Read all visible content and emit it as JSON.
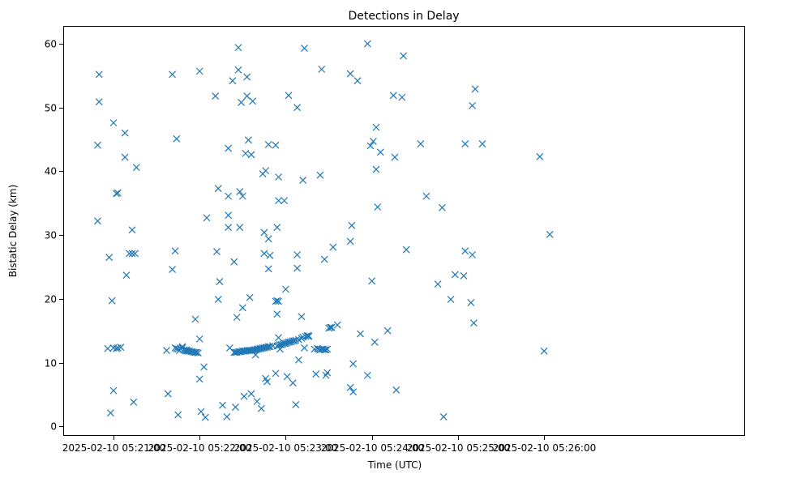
{
  "chart_data": {
    "type": "scatter",
    "title": "Detections in Delay",
    "xlabel": "Time (UTC)",
    "ylabel": "Bistatic Delay (km)",
    "marker": "x",
    "color": "#1f77b4",
    "xlim": [
      -20,
      455
    ],
    "ylim": [
      -1.5,
      62.8
    ],
    "x_unit": "seconds after 2025-02-10 05:20:45",
    "x_ticks": [
      15,
      75,
      135,
      195,
      255,
      315
    ],
    "x_tick_labels": [
      "2025-02-10 05:21:00",
      "2025-02-10 05:22:00",
      "2025-02-10 05:23:00",
      "2025-02-10 05:24:00",
      "2025-02-10 05:25:00",
      "2025-02-10 05:26:00"
    ],
    "y_ticks": [
      0,
      10,
      20,
      30,
      40,
      50,
      60
    ],
    "y_tick_labels": [
      "0",
      "10",
      "20",
      "30",
      "40",
      "50",
      "60"
    ],
    "grid": false,
    "points": [
      [
        4,
        44.1
      ],
      [
        4,
        32.2
      ],
      [
        5,
        55.2
      ],
      [
        5,
        50.9
      ],
      [
        11,
        12.2
      ],
      [
        12,
        26.5
      ],
      [
        13,
        2.1
      ],
      [
        14,
        19.7
      ],
      [
        15,
        12.3
      ],
      [
        15,
        47.6
      ],
      [
        15,
        5.6
      ],
      [
        17,
        36.5
      ],
      [
        17,
        12.2
      ],
      [
        18,
        36.6
      ],
      [
        18,
        12.3
      ],
      [
        20,
        12.4
      ],
      [
        20,
        12.4
      ],
      [
        23,
        46.0
      ],
      [
        23,
        42.2
      ],
      [
        24,
        23.7
      ],
      [
        26,
        27.1
      ],
      [
        28,
        27.1
      ],
      [
        28,
        30.8
      ],
      [
        29,
        3.8
      ],
      [
        30,
        27.1
      ],
      [
        31,
        40.6
      ],
      [
        52,
        11.9
      ],
      [
        53,
        5.1
      ],
      [
        56,
        55.2
      ],
      [
        56,
        24.6
      ],
      [
        58,
        27.5
      ],
      [
        58,
        12.3
      ],
      [
        59,
        45.1
      ],
      [
        59,
        12.2
      ],
      [
        60,
        12.1
      ],
      [
        60,
        1.8
      ],
      [
        61,
        11.9
      ],
      [
        62,
        12.1
      ],
      [
        63,
        12.5
      ],
      [
        63,
        12.3
      ],
      [
        64,
        12.0
      ],
      [
        65,
        11.9
      ],
      [
        66,
        12.0
      ],
      [
        66,
        11.8
      ],
      [
        67,
        11.8
      ],
      [
        68,
        11.8
      ],
      [
        69,
        11.7
      ],
      [
        70,
        11.7
      ],
      [
        71,
        11.6
      ],
      [
        72,
        11.6
      ],
      [
        72,
        16.8
      ],
      [
        73,
        11.6
      ],
      [
        74,
        11.5
      ],
      [
        75,
        7.4
      ],
      [
        75,
        13.7
      ],
      [
        75,
        55.7
      ],
      [
        76,
        2.3
      ],
      [
        78,
        9.3
      ],
      [
        79,
        1.4
      ],
      [
        80,
        32.7
      ],
      [
        86,
        51.8
      ],
      [
        87,
        27.4
      ],
      [
        88,
        37.3
      ],
      [
        88,
        19.9
      ],
      [
        89,
        22.7
      ],
      [
        91,
        3.3
      ],
      [
        94,
        1.5
      ],
      [
        95,
        36.1
      ],
      [
        95,
        33.1
      ],
      [
        95,
        31.2
      ],
      [
        95,
        43.6
      ],
      [
        96,
        12.3
      ],
      [
        98,
        54.2
      ],
      [
        99,
        11.6
      ],
      [
        99,
        25.8
      ],
      [
        100,
        11.6
      ],
      [
        100,
        3.0
      ],
      [
        101,
        11.6
      ],
      [
        101,
        17.1
      ],
      [
        102,
        11.7
      ],
      [
        102,
        59.4
      ],
      [
        102,
        55.9
      ],
      [
        103,
        11.7
      ],
      [
        103,
        36.8
      ],
      [
        103,
        31.2
      ],
      [
        104,
        11.7
      ],
      [
        104,
        50.8
      ],
      [
        105,
        11.8
      ],
      [
        105,
        36.1
      ],
      [
        105,
        18.6
      ],
      [
        106,
        11.8
      ],
      [
        106,
        4.7
      ],
      [
        107,
        11.8
      ],
      [
        107,
        42.8
      ],
      [
        108,
        11.9
      ],
      [
        108,
        51.8
      ],
      [
        108,
        54.8
      ],
      [
        109,
        11.9
      ],
      [
        109,
        44.9
      ],
      [
        110,
        11.9
      ],
      [
        110,
        20.2
      ],
      [
        111,
        11.9
      ],
      [
        111,
        42.6
      ],
      [
        111,
        5.1
      ],
      [
        112,
        11.9
      ],
      [
        112,
        51.0
      ],
      [
        113,
        12.0
      ],
      [
        114,
        12.0
      ],
      [
        114,
        11.2
      ],
      [
        115,
        12.1
      ],
      [
        115,
        3.9
      ],
      [
        116,
        12.1
      ],
      [
        117,
        12.2
      ],
      [
        118,
        12.2
      ],
      [
        118,
        2.8
      ],
      [
        119,
        12.3
      ],
      [
        119,
        39.6
      ],
      [
        120,
        12.3
      ],
      [
        120,
        30.4
      ],
      [
        120,
        27.1
      ],
      [
        121,
        12.4
      ],
      [
        121,
        40.1
      ],
      [
        121,
        7.5
      ],
      [
        122,
        12.4
      ],
      [
        122,
        7.0
      ],
      [
        123,
        12.5
      ],
      [
        123,
        44.2
      ],
      [
        123,
        29.4
      ],
      [
        123,
        24.7
      ],
      [
        124,
        12.5
      ],
      [
        124,
        26.8
      ],
      [
        126,
        12.6
      ],
      [
        128,
        44.1
      ],
      [
        128,
        19.6
      ],
      [
        128,
        8.3
      ],
      [
        129,
        12.6
      ],
      [
        129,
        19.7
      ],
      [
        129,
        31.2
      ],
      [
        129,
        17.6
      ],
      [
        130,
        12.7
      ],
      [
        130,
        35.4
      ],
      [
        130,
        13.9
      ],
      [
        130,
        39.1
      ],
      [
        130,
        19.6
      ],
      [
        131,
        12.8
      ],
      [
        131,
        12.1
      ],
      [
        132,
        12.8
      ],
      [
        133,
        12.9
      ],
      [
        134,
        13.0
      ],
      [
        134,
        35.4
      ],
      [
        135,
        13.0
      ],
      [
        135,
        21.5
      ],
      [
        136,
        13.1
      ],
      [
        136,
        7.8
      ],
      [
        137,
        13.2
      ],
      [
        137,
        51.9
      ],
      [
        138,
        13.2
      ],
      [
        139,
        13.3
      ],
      [
        140,
        13.4
      ],
      [
        140,
        6.8
      ],
      [
        141,
        13.4
      ],
      [
        142,
        13.5
      ],
      [
        142,
        3.4
      ],
      [
        143,
        26.9
      ],
      [
        143,
        24.8
      ],
      [
        143,
        50.0
      ],
      [
        144,
        13.6
      ],
      [
        144,
        10.4
      ],
      [
        146,
        13.8
      ],
      [
        146,
        17.2
      ],
      [
        147,
        14.0
      ],
      [
        147,
        38.6
      ],
      [
        148,
        59.3
      ],
      [
        148,
        12.3
      ],
      [
        149,
        14.1
      ],
      [
        150,
        14.2
      ],
      [
        151,
        14.1
      ],
      [
        151,
        14.2
      ],
      [
        155,
        12.1
      ],
      [
        156,
        8.2
      ],
      [
        157,
        12.2
      ],
      [
        158,
        12.1
      ],
      [
        159,
        12.0
      ],
      [
        159,
        39.4
      ],
      [
        160,
        12.1
      ],
      [
        160,
        56.0
      ],
      [
        161,
        12.1
      ],
      [
        162,
        12.0
      ],
      [
        162,
        26.2
      ],
      [
        163,
        12.0
      ],
      [
        163,
        8.0
      ],
      [
        164,
        12.1
      ],
      [
        164,
        8.4
      ],
      [
        165,
        15.4
      ],
      [
        166,
        15.5
      ],
      [
        167,
        15.5
      ],
      [
        167,
        15.5
      ],
      [
        168,
        28.1
      ],
      [
        171,
        15.9
      ],
      [
        180,
        6.1
      ],
      [
        180,
        55.3
      ],
      [
        180,
        29.0
      ],
      [
        181,
        31.5
      ],
      [
        182,
        5.4
      ],
      [
        182,
        9.8
      ],
      [
        185,
        54.2
      ],
      [
        187,
        14.5
      ],
      [
        192,
        60.0
      ],
      [
        192,
        8.0
      ],
      [
        194,
        44.0
      ],
      [
        195,
        22.8
      ],
      [
        196,
        44.7
      ],
      [
        197,
        13.2
      ],
      [
        198,
        46.9
      ],
      [
        198,
        40.3
      ],
      [
        199,
        34.4
      ],
      [
        201,
        43.0
      ],
      [
        206,
        15.0
      ],
      [
        210,
        51.9
      ],
      [
        211,
        42.2
      ],
      [
        212,
        5.7
      ],
      [
        216,
        51.6
      ],
      [
        217,
        58.1
      ],
      [
        219,
        27.7
      ],
      [
        229,
        44.3
      ],
      [
        233,
        36.1
      ],
      [
        241,
        22.3
      ],
      [
        244,
        34.3
      ],
      [
        245,
        1.5
      ],
      [
        250,
        19.9
      ],
      [
        253,
        23.8
      ],
      [
        259,
        23.6
      ],
      [
        260,
        44.3
      ],
      [
        260,
        27.5
      ],
      [
        264,
        19.4
      ],
      [
        265,
        26.9
      ],
      [
        265,
        50.3
      ],
      [
        266,
        16.2
      ],
      [
        267,
        52.9
      ],
      [
        272,
        44.3
      ],
      [
        312,
        42.3
      ],
      [
        315,
        11.8
      ],
      [
        319,
        30.1
      ]
    ]
  }
}
